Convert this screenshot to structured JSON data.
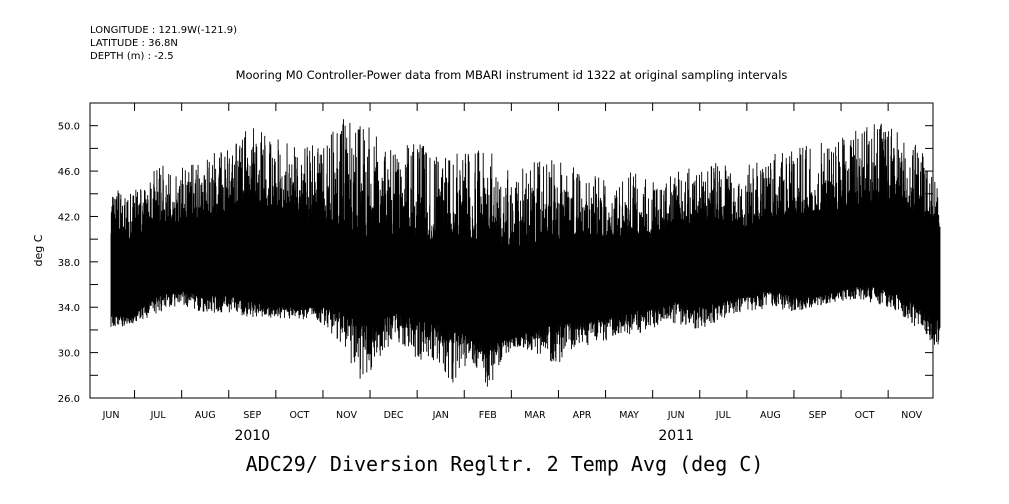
{
  "header": {
    "longitude": "LONGITUDE : 121.9W(-121.9)",
    "latitude": "LATITUDE : 36.8N",
    "depth": "DEPTH (m) : -2.5",
    "subtitle": "Mooring M0 Controller-Power data from MBARI instrument id 1322 at original sampling intervals"
  },
  "footer": {
    "title": "ADC29/ Diversion Regltr. 2 Temp Avg (deg C)"
  },
  "chart_data": {
    "type": "line",
    "title": "ADC29/ Diversion Regltr. 2 Temp Avg (deg C)",
    "xlabel": "",
    "ylabel": "deg C",
    "ylim": [
      26.0,
      52.0
    ],
    "yticks": [
      "26.0",
      "30.0",
      "34.0",
      "38.0",
      "42.0",
      "46.0",
      "50.0"
    ],
    "xlim_months": [
      0,
      18
    ],
    "month_labels": [
      "JUN",
      "JUL",
      "AUG",
      "SEP",
      "OCT",
      "NOV",
      "DEC",
      "JAN",
      "FEB",
      "MAR",
      "APR",
      "MAY",
      "JUN",
      "JUL",
      "AUG",
      "SEP",
      "OCT",
      "NOV"
    ],
    "year_labels": [
      {
        "label": "2010",
        "month_index": 3
      },
      {
        "label": "2011",
        "month_index": 12
      }
    ],
    "series": [
      {
        "name": "Diversion Regltr. 2 Temp Avg",
        "color": "#000000",
        "envelope": {
          "x_month": [
            0.0,
            0.4,
            0.8,
            1.0,
            1.5,
            2.0,
            2.5,
            3.0,
            3.5,
            4.0,
            4.5,
            5.0,
            5.3,
            5.6,
            6.0,
            6.5,
            7.0,
            7.3,
            7.6,
            8.0,
            8.3,
            8.6,
            9.0,
            9.5,
            10.0,
            10.5,
            11.0,
            11.5,
            12.0,
            12.5,
            13.0,
            13.5,
            14.0,
            14.5,
            15.0,
            15.5,
            16.0,
            16.5,
            17.0,
            17.3,
            17.6
          ],
          "max": [
            44.5,
            44.0,
            45.5,
            46.5,
            46.5,
            47.0,
            48.5,
            50.0,
            49.0,
            48.0,
            48.5,
            51.0,
            50.5,
            49.5,
            48.0,
            48.5,
            47.5,
            48.0,
            47.5,
            48.5,
            46.5,
            46.0,
            47.0,
            47.5,
            46.0,
            45.5,
            46.0,
            45.5,
            46.0,
            46.5,
            47.0,
            46.5,
            47.5,
            48.0,
            48.5,
            49.0,
            50.0,
            50.5,
            49.0,
            48.0,
            44.5
          ],
          "upper": [
            40.5,
            40.0,
            41.0,
            41.5,
            41.5,
            42.0,
            42.5,
            43.5,
            42.5,
            42.0,
            41.5,
            41.0,
            40.5,
            40.0,
            40.5,
            40.0,
            39.5,
            40.5,
            40.0,
            40.0,
            39.5,
            39.0,
            39.5,
            40.0,
            40.5,
            40.0,
            40.5,
            40.0,
            41.0,
            41.5,
            41.5,
            41.0,
            42.0,
            42.0,
            42.5,
            42.5,
            43.0,
            43.5,
            42.5,
            42.0,
            41.0
          ],
          "lower": [
            33.5,
            33.0,
            34.5,
            35.0,
            35.5,
            35.0,
            35.0,
            34.5,
            34.0,
            34.0,
            34.0,
            33.5,
            32.5,
            32.5,
            33.5,
            33.0,
            32.5,
            32.0,
            31.5,
            30.5,
            31.0,
            31.5,
            32.0,
            32.5,
            33.0,
            33.0,
            33.5,
            34.0,
            34.5,
            34.0,
            34.5,
            35.0,
            35.5,
            35.0,
            35.0,
            35.5,
            36.0,
            35.5,
            34.5,
            33.5,
            33.0
          ],
          "min": [
            32.0,
            32.5,
            33.0,
            33.5,
            34.0,
            33.5,
            33.5,
            33.0,
            33.0,
            33.0,
            32.5,
            30.0,
            27.0,
            29.0,
            31.0,
            29.5,
            28.5,
            27.0,
            29.5,
            26.5,
            29.5,
            30.5,
            30.0,
            28.5,
            30.5,
            31.0,
            31.5,
            32.0,
            32.5,
            32.0,
            33.0,
            33.5,
            34.0,
            33.5,
            34.0,
            34.5,
            34.5,
            34.0,
            32.5,
            31.0,
            30.5
          ]
        }
      }
    ]
  }
}
